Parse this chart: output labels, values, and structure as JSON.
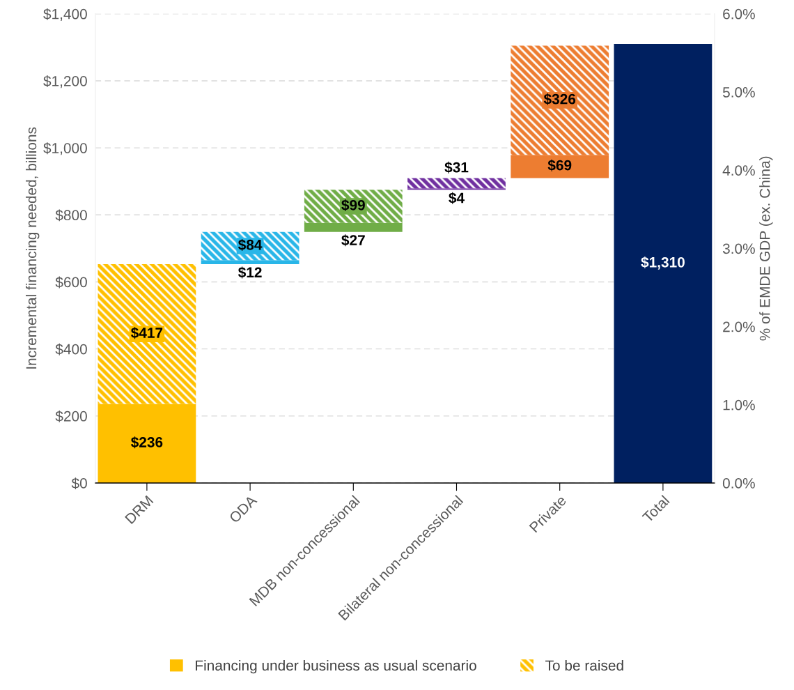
{
  "chart_data": {
    "type": "bar",
    "categories": [
      "DRM",
      "ODA",
      "MDB non-concessional",
      "Bilateral non-concessional",
      "Private",
      "Total"
    ],
    "series": [
      {
        "name": "Financing under business as usual scenario",
        "color": "#ffc000",
        "colors": [
          "#ffc000",
          "#29b6e8",
          "#70ad47",
          "#7030a0",
          "#ed7d31",
          "#002060"
        ],
        "base": [
          0,
          653,
          749,
          875,
          910,
          0
        ],
        "values": [
          236,
          12,
          27,
          4,
          69,
          1310
        ],
        "value_labels": [
          "$236",
          "$12",
          "$27",
          "$4",
          "$69",
          "$1,310"
        ]
      },
      {
        "name": "To be raised",
        "color": "#ffc000",
        "colors": [
          "#ffc000",
          "#29b6e8",
          "#70ad47",
          "#7030a0",
          "#ed7d31",
          null
        ],
        "base": [
          236,
          665,
          776,
          879,
          979,
          null
        ],
        "values": [
          417,
          84,
          99,
          31,
          326,
          null
        ],
        "value_labels": [
          "$417",
          "$84",
          "$99",
          "$31",
          "$326",
          null
        ]
      }
    ],
    "ylim": [
      0,
      1400
    ],
    "yticks": [
      {
        "value": 0,
        "label": "$0"
      },
      {
        "value": 200,
        "label": "$200"
      },
      {
        "value": 400,
        "label": "$400"
      },
      {
        "value": 600,
        "label": "$600"
      },
      {
        "value": 800,
        "label": "$800"
      },
      {
        "value": 1000,
        "label": "$1,000"
      },
      {
        "value": 1200,
        "label": "$1,200"
      },
      {
        "value": 1400,
        "label": "$1,400"
      }
    ],
    "y2lim": [
      0,
      6.0
    ],
    "y2ticks": [
      {
        "value": 0,
        "label": "0.0%"
      },
      {
        "value": 1,
        "label": "1.0%"
      },
      {
        "value": 2,
        "label": "2.0%"
      },
      {
        "value": 3,
        "label": "3.0%"
      },
      {
        "value": 4,
        "label": "4.0%"
      },
      {
        "value": 5,
        "label": "5.0%"
      },
      {
        "value": 6,
        "label": "6.0%"
      }
    ],
    "ylabel": "Incremental financing needed, billions",
    "y2label": "% of EMDE GDP (ex. China)",
    "grid": "y",
    "legend": "bottom"
  }
}
